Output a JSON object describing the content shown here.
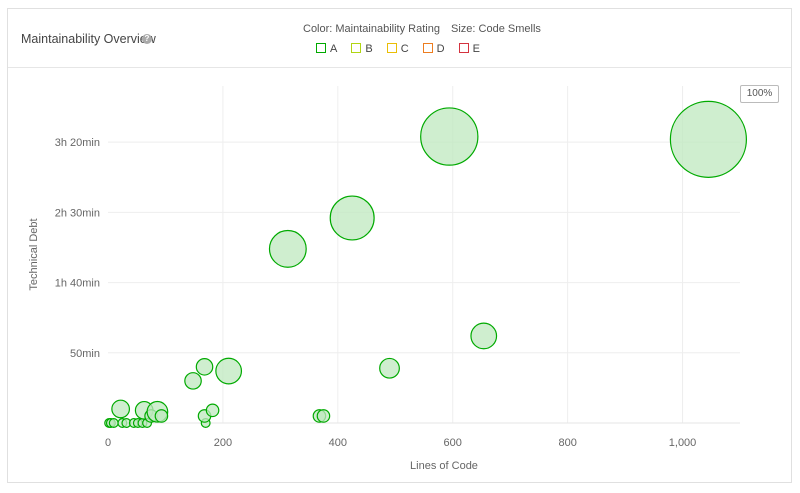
{
  "widget": {
    "title": "Maintainability Overview",
    "help_icon": "question-circle-icon",
    "legend_color_caption": "Color: Maintainability Rating",
    "legend_size_caption": "Size: Code Smells",
    "zoom_label": "100%"
  },
  "chart_data": {
    "type": "scatter",
    "title": "",
    "xlabel": "Lines of Code",
    "ylabel": "Technical Debt",
    "xlim": [
      0,
      1100
    ],
    "ylim": [
      0,
      240
    ],
    "x_ticks": [
      {
        "value": 0,
        "label": "0"
      },
      {
        "value": 200,
        "label": "200"
      },
      {
        "value": 400,
        "label": "400"
      },
      {
        "value": 600,
        "label": "600"
      },
      {
        "value": 800,
        "label": "800"
      },
      {
        "value": 1000,
        "label": "1,000"
      }
    ],
    "y_ticks": [
      {
        "value": 50,
        "label": "50min"
      },
      {
        "value": 100,
        "label": "1h 40min"
      },
      {
        "value": 150,
        "label": "2h 30min"
      },
      {
        "value": 200,
        "label": "3h 20min"
      }
    ],
    "grid": true,
    "legend": [
      {
        "name": "A",
        "color": "#00aa00"
      },
      {
        "name": "B",
        "color": "#b0d513"
      },
      {
        "name": "C",
        "color": "#eabe06"
      },
      {
        "name": "D",
        "color": "#ed7d20"
      },
      {
        "name": "E",
        "color": "#d4333f"
      }
    ],
    "series": [
      {
        "name": "A",
        "color": "#00aa00",
        "fill": "#bfe8bf",
        "points": [
          {
            "x": 2,
            "y": 0,
            "size": 2
          },
          {
            "x": 5,
            "y": 0,
            "size": 2
          },
          {
            "x": 10,
            "y": 0,
            "size": 2
          },
          {
            "x": 25,
            "y": 0,
            "size": 2
          },
          {
            "x": 32,
            "y": 0,
            "size": 2
          },
          {
            "x": 45,
            "y": 0,
            "size": 2
          },
          {
            "x": 52,
            "y": 0,
            "size": 2
          },
          {
            "x": 60,
            "y": 0,
            "size": 2
          },
          {
            "x": 68,
            "y": 0,
            "size": 2
          },
          {
            "x": 170,
            "y": 0,
            "size": 2
          },
          {
            "x": 22,
            "y": 10,
            "size": 8
          },
          {
            "x": 63,
            "y": 9,
            "size": 8
          },
          {
            "x": 75,
            "y": 5,
            "size": 4
          },
          {
            "x": 86,
            "y": 8,
            "size": 11
          },
          {
            "x": 93,
            "y": 5,
            "size": 4
          },
          {
            "x": 148,
            "y": 30,
            "size": 7
          },
          {
            "x": 168,
            "y": 5,
            "size": 4
          },
          {
            "x": 168,
            "y": 40,
            "size": 7
          },
          {
            "x": 182,
            "y": 9,
            "size": 4
          },
          {
            "x": 210,
            "y": 37,
            "size": 17
          },
          {
            "x": 368,
            "y": 5,
            "size": 4
          },
          {
            "x": 375,
            "y": 5,
            "size": 4
          },
          {
            "x": 313,
            "y": 124,
            "size": 35
          },
          {
            "x": 425,
            "y": 146,
            "size": 50
          },
          {
            "x": 490,
            "y": 39,
            "size": 10
          },
          {
            "x": 594,
            "y": 204,
            "size": 85
          },
          {
            "x": 654,
            "y": 62,
            "size": 17
          },
          {
            "x": 1045,
            "y": 202,
            "size": 150
          }
        ]
      }
    ]
  }
}
